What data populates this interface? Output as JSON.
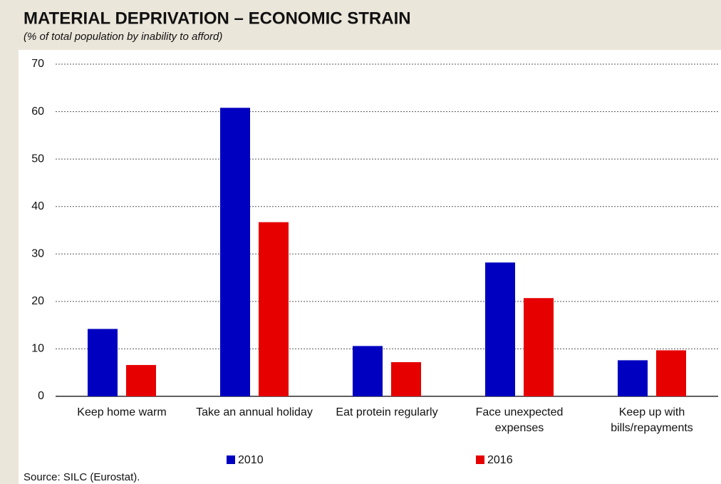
{
  "chart_data": {
    "type": "bar",
    "title": "MATERIAL DEPRIVATION – ECONOMIC STRAIN",
    "subtitle": "(% of total population by inability to afford)",
    "categories": [
      "Keep home warm",
      "Take an annual holiday",
      "Eat protein regularly",
      "Face unexpected expenses",
      "Keep up with bills/repayments"
    ],
    "series": [
      {
        "name": "2010",
        "color": "#0000c0",
        "values": [
          14.2,
          60.8,
          10.6,
          28.2,
          7.6
        ]
      },
      {
        "name": "2016",
        "color": "#e60000",
        "values": [
          6.6,
          36.7,
          7.2,
          20.7,
          9.7
        ]
      }
    ],
    "ylim": [
      0,
      70
    ],
    "yticks": [
      0,
      10,
      20,
      30,
      40,
      50,
      60,
      70
    ],
    "grid": true,
    "source": "Source: SILC (Eurostat)."
  }
}
